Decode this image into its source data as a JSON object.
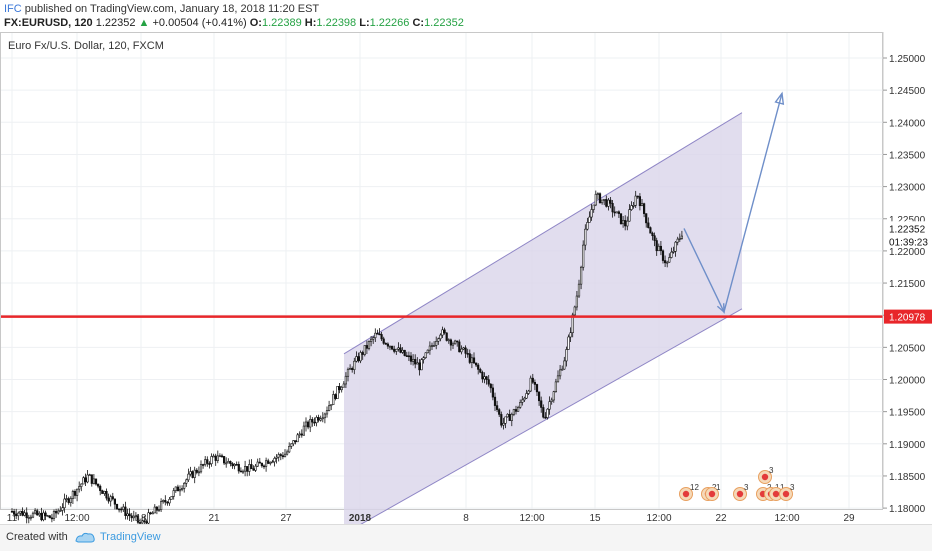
{
  "header": {
    "publisher": "IFC",
    "published_text": " published on TradingView.com, January 18, 2018 11:20 EST",
    "symbol": "FX:EURUSD, 120",
    "last": "1.22352",
    "change_arrow": "▲",
    "change": "+0.00504 (+0.41%)",
    "o_label": "O:",
    "o_value": "1.22389",
    "h_label": "H:",
    "h_value": "1.22398",
    "l_label": "L:",
    "l_value": "1.22266",
    "c_label": "C:",
    "c_value": "1.22352"
  },
  "footer": {
    "created_with": "Created with",
    "brand": "TradingView"
  },
  "colors": {
    "channel_fill": "#d9d4ea",
    "channel_line": "#8f86c6",
    "support_line": "#e8262a",
    "arrow": "#6f8fc9",
    "candle": "#111111",
    "grid": "#eef0f3",
    "text": "#333333"
  },
  "chart_data": {
    "type": "candlestick",
    "title": "Euro Fx/U.S. Dollar, 120, FXCM",
    "x_tick_labels": [
      "11",
      "12:00",
      "18",
      "21",
      "27",
      "2018",
      "8",
      "12:00",
      "15",
      "12:00",
      "22",
      "12:00",
      "29"
    ],
    "y_tick_labels": [
      "1.25000",
      "1.24500",
      "1.24000",
      "1.23500",
      "1.23000",
      "1.22500",
      "1.22000",
      "1.21500",
      "1.21000",
      "1.20500",
      "1.20000",
      "1.19500",
      "1.19000",
      "1.18500",
      "1.18000"
    ],
    "ylim": [
      1.18,
      1.2535
    ],
    "last_price_label": "1.22352",
    "countdown_label": "01:39:23",
    "support_level": 1.20978,
    "support_label": "1.20978",
    "price_path": [
      {
        "x": "Dec 11",
        "y": 1.1795
      },
      {
        "x": "Dec 12 12:00",
        "y": 1.1785
      },
      {
        "x": "Dec 14",
        "y": 1.185
      },
      {
        "x": "Dec 15",
        "y": 1.18
      },
      {
        "x": "Dec 18",
        "y": 1.1775
      },
      {
        "x": "Dec 19",
        "y": 1.181
      },
      {
        "x": "Dec 20",
        "y": 1.185
      },
      {
        "x": "Dec 21",
        "y": 1.188
      },
      {
        "x": "Dec 22",
        "y": 1.1865
      },
      {
        "x": "Dec 25",
        "y": 1.186
      },
      {
        "x": "Dec 26",
        "y": 1.1875
      },
      {
        "x": "Dec 27",
        "y": 1.1885
      },
      {
        "x": "Dec 28",
        "y": 1.1925
      },
      {
        "x": "Dec 29",
        "y": 1.195
      },
      {
        "x": "Jan 1",
        "y": 1.202
      },
      {
        "x": "Jan 2",
        "y": 1.207
      },
      {
        "x": "Jan 3",
        "y": 1.2045
      },
      {
        "x": "Jan 4",
        "y": 1.202
      },
      {
        "x": "Jan 5",
        "y": 1.2075
      },
      {
        "x": "Jan 8",
        "y": 1.204
      },
      {
        "x": "Jan 9",
        "y": 1.199
      },
      {
        "x": "Jan 9 12:00",
        "y": 1.193
      },
      {
        "x": "Jan 10",
        "y": 1.196
      },
      {
        "x": "Jan 10 12:00",
        "y": 1.2
      },
      {
        "x": "Jan 11",
        "y": 1.194
      },
      {
        "x": "Jan 12",
        "y": 1.204
      },
      {
        "x": "Jan 12 12:00",
        "y": 1.214
      },
      {
        "x": "Jan 14",
        "y": 1.222
      },
      {
        "x": "Jan 15",
        "y": 1.2285
      },
      {
        "x": "Jan 15 12:00",
        "y": 1.2275
      },
      {
        "x": "Jan 16",
        "y": 1.224
      },
      {
        "x": "Jan 16 12:00",
        "y": 1.229
      },
      {
        "x": "Jan 17",
        "y": 1.221
      },
      {
        "x": "Jan 17 12:00",
        "y": 1.218
      },
      {
        "x": "Jan 18",
        "y": 1.2235
      }
    ],
    "channel": {
      "upper_start": {
        "x": "Dec 30",
        "y": 1.204
      },
      "upper_end": {
        "x": "Jan 22 12:00",
        "y": 1.2415
      },
      "lower_start": {
        "x": "Dec 30",
        "y": 1.176
      },
      "lower_end": {
        "x": "Jan 22 12:00",
        "y": 1.211
      }
    },
    "projection_path": [
      {
        "x": "Jan 18",
        "y": 1.2235
      },
      {
        "x": "Jan 21 12:00",
        "y": 1.2105
      },
      {
        "x": "Jan 23 12:00",
        "y": 1.2445
      }
    ],
    "event_markers": [
      "12",
      "2",
      "1",
      "3",
      "2",
      "1",
      "1",
      "3",
      "3"
    ]
  }
}
